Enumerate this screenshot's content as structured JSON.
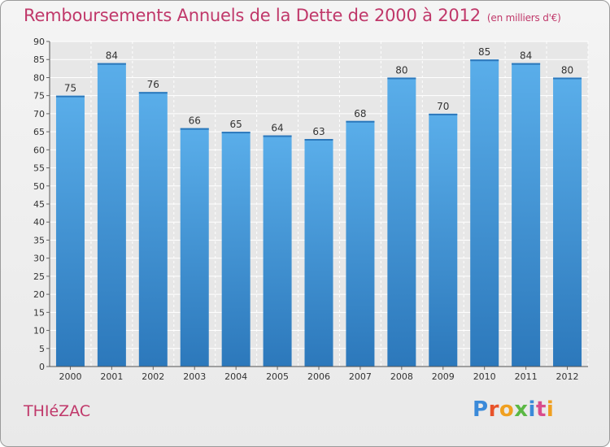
{
  "header": {
    "title": "Remboursements Annuels de la Dette de 2000 à 2012",
    "unit": "(en milliers d'€)"
  },
  "footer": {
    "commune": "THIéZAC",
    "logo_text": "Proxiti"
  },
  "colors": {
    "bar": "#3f93d6",
    "bar_light": "#5aaeea",
    "bar_dark": "#2f7cc0",
    "title": "#c0386a",
    "grid": "#ffffff",
    "axis_text": "#333333"
  },
  "chart_data": {
    "type": "bar",
    "title": "Remboursements Annuels de la Dette de 2000 à 2012",
    "subtitle": "(en milliers d'€)",
    "categories": [
      "2000",
      "2001",
      "2002",
      "2003",
      "2004",
      "2005",
      "2006",
      "2007",
      "2008",
      "2009",
      "2010",
      "2011",
      "2012"
    ],
    "values": [
      75,
      84,
      76,
      66,
      65,
      64,
      63,
      68,
      80,
      70,
      85,
      84,
      80
    ],
    "ylim": [
      0,
      90
    ],
    "yticks": [
      0,
      5,
      10,
      15,
      20,
      25,
      30,
      35,
      40,
      45,
      50,
      55,
      60,
      65,
      70,
      75,
      80,
      85,
      90
    ],
    "grid": true,
    "data_labels": true,
    "xlabel": "",
    "ylabel": ""
  }
}
